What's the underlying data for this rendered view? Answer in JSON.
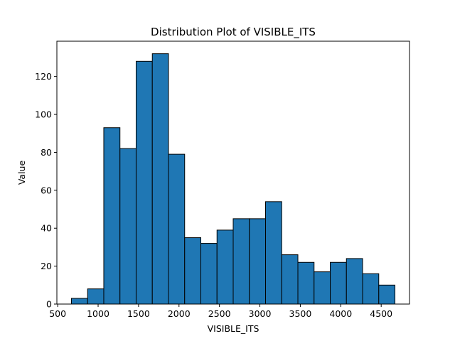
{
  "chart_data": {
    "type": "bar",
    "title": "Distribution Plot of VISIBLE_ITS",
    "xlabel": "VISIBLE_ITS",
    "ylabel": "Value",
    "bin_edges": [
      670,
      870,
      1070,
      1270,
      1470,
      1670,
      1870,
      2070,
      2270,
      2470,
      2670,
      2870,
      3070,
      3270,
      3470,
      3670,
      3870,
      4070,
      4270,
      4470,
      4670
    ],
    "values": [
      3,
      8,
      93,
      82,
      128,
      132,
      79,
      35,
      32,
      39,
      45,
      45,
      54,
      26,
      22,
      17,
      22,
      24,
      16,
      10
    ],
    "xlim": [
      490,
      4850
    ],
    "ylim": [
      0,
      138.6
    ],
    "x_ticks": [
      500,
      1000,
      1500,
      2000,
      2500,
      3000,
      3500,
      4000,
      4500
    ],
    "y_ticks": [
      0,
      20,
      40,
      60,
      80,
      100,
      120
    ],
    "bar_color": "#1f77b4",
    "edge_color": "#000000",
    "grid": false,
    "legend": "none"
  }
}
